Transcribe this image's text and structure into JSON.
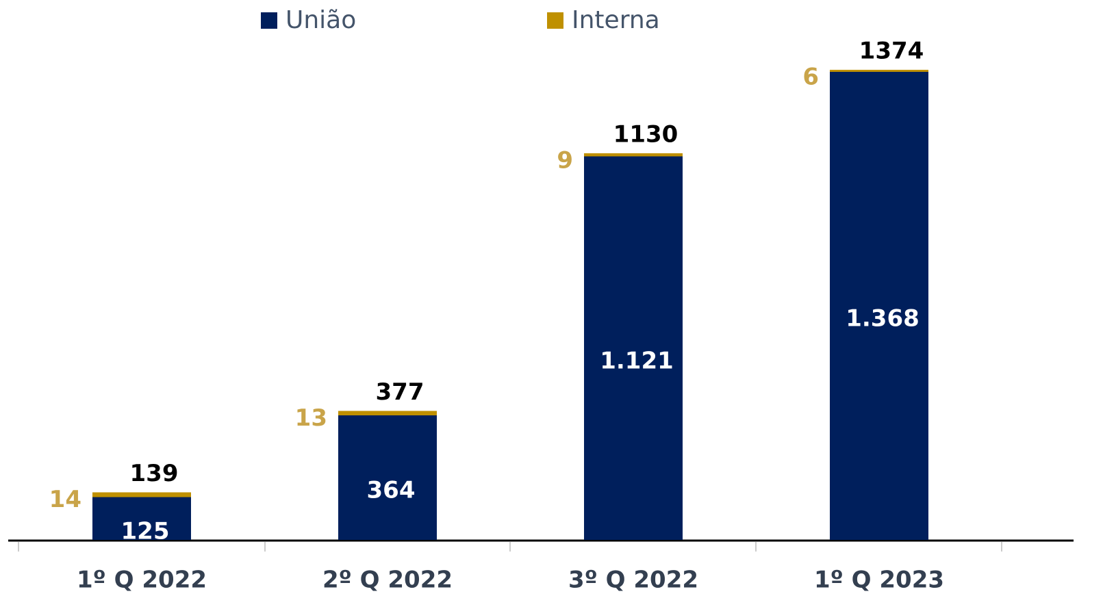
{
  "chart_data": {
    "type": "stacked_bar",
    "categories": [
      "1º Q 2022",
      "2º Q 2022",
      "3º Q 2022",
      "1º Q 2023"
    ],
    "series": [
      {
        "name": "União",
        "color": "#001f5c",
        "values": [
          125,
          364,
          1121,
          1368
        ],
        "value_labels": [
          "125",
          "364",
          "1.121",
          "1.368"
        ]
      },
      {
        "name": "Interna",
        "color": "#bf9000",
        "values": [
          14,
          13,
          9,
          6
        ]
      }
    ],
    "totals": [
      139,
      377,
      1130,
      1374
    ]
  }
}
